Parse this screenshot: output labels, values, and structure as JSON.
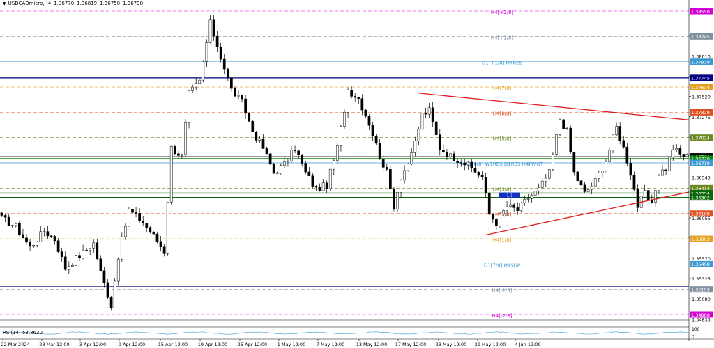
{
  "header": {
    "arrow": "▼",
    "symbol": "USDCADmicro,H4",
    "open": "1.36770",
    "high": "1.36819",
    "low": "1.36750",
    "close": "1.36798"
  },
  "rsi_label": "RSI(14) 53.8630",
  "rsi_scale": {
    "top": "100",
    "bottom": "0"
  },
  "chart_data": {
    "type": "candlestick",
    "symbol": "USDCADmicro",
    "timeframe": "H4",
    "ylim": [
      1.3475,
      1.3875
    ],
    "x_labels": [
      "22 Mar 2024",
      "28 Mar 12:00",
      "3 Apr 12:00",
      "9 Apr 12:00",
      "15 Apr 12:00",
      "19 Apr 12:00",
      "25 Apr 12:00",
      "1 May 12:00",
      "7 May 12:00",
      "13 May 12:00",
      "17 May 12:00",
      "23 May 12:00",
      "29 May 12:00",
      "4 Jun 12:00"
    ],
    "y_ticks": [
      "1.38250",
      "1.38010",
      "1.37765",
      "1.37520",
      "1.37275",
      "1.37030",
      "1.36790",
      "1.36545",
      "1.36300",
      "1.36055",
      "1.35815",
      "1.35570",
      "1.35325",
      "1.35080",
      "1.34835"
    ],
    "close_trend": [
      {
        "x": 0,
        "y": 1.3605
      },
      {
        "x": 4,
        "y": 1.3595
      },
      {
        "x": 8,
        "y": 1.357
      },
      {
        "x": 12,
        "y": 1.359
      },
      {
        "x": 15,
        "y": 1.358
      },
      {
        "x": 18,
        "y": 1.3545
      },
      {
        "x": 22,
        "y": 1.356
      },
      {
        "x": 26,
        "y": 1.3575
      },
      {
        "x": 28,
        "y": 1.354
      },
      {
        "x": 31,
        "y": 1.35
      },
      {
        "x": 33,
        "y": 1.356
      },
      {
        "x": 36,
        "y": 1.3615
      },
      {
        "x": 40,
        "y": 1.36
      },
      {
        "x": 44,
        "y": 1.3578
      },
      {
        "x": 46,
        "y": 1.3565
      },
      {
        "x": 48,
        "y": 1.369
      },
      {
        "x": 51,
        "y": 1.368
      },
      {
        "x": 53,
        "y": 1.3755
      },
      {
        "x": 56,
        "y": 1.377
      },
      {
        "x": 59,
        "y": 1.384
      },
      {
        "x": 62,
        "y": 1.38
      },
      {
        "x": 65,
        "y": 1.376
      },
      {
        "x": 68,
        "y": 1.3745
      },
      {
        "x": 71,
        "y": 1.371
      },
      {
        "x": 74,
        "y": 1.369
      },
      {
        "x": 77,
        "y": 1.366
      },
      {
        "x": 80,
        "y": 1.367
      },
      {
        "x": 83,
        "y": 1.369
      },
      {
        "x": 86,
        "y": 1.366
      },
      {
        "x": 89,
        "y": 1.364
      },
      {
        "x": 92,
        "y": 1.3645
      },
      {
        "x": 95,
        "y": 1.369
      },
      {
        "x": 98,
        "y": 1.376
      },
      {
        "x": 101,
        "y": 1.375
      },
      {
        "x": 104,
        "y": 1.372
      },
      {
        "x": 107,
        "y": 1.368
      },
      {
        "x": 109,
        "y": 1.366
      },
      {
        "x": 111,
        "y": 1.362
      },
      {
        "x": 113,
        "y": 1.3655
      },
      {
        "x": 116,
        "y": 1.368
      },
      {
        "x": 119,
        "y": 1.373
      },
      {
        "x": 121,
        "y": 1.3735
      },
      {
        "x": 124,
        "y": 1.369
      },
      {
        "x": 127,
        "y": 1.368
      },
      {
        "x": 130,
        "y": 1.3675
      },
      {
        "x": 133,
        "y": 1.3665
      },
      {
        "x": 136,
        "y": 1.3655
      },
      {
        "x": 138,
        "y": 1.361
      },
      {
        "x": 140,
        "y": 1.36
      },
      {
        "x": 143,
        "y": 1.362
      },
      {
        "x": 146,
        "y": 1.3615
      },
      {
        "x": 149,
        "y": 1.363
      },
      {
        "x": 152,
        "y": 1.364
      },
      {
        "x": 155,
        "y": 1.366
      },
      {
        "x": 158,
        "y": 1.3725
      },
      {
        "x": 160,
        "y": 1.371
      },
      {
        "x": 162,
        "y": 1.366
      },
      {
        "x": 165,
        "y": 1.3635
      },
      {
        "x": 168,
        "y": 1.365
      },
      {
        "x": 171,
        "y": 1.3675
      },
      {
        "x": 174,
        "y": 1.3715
      },
      {
        "x": 176,
        "y": 1.369
      },
      {
        "x": 178,
        "y": 1.366
      },
      {
        "x": 180,
        "y": 1.362
      },
      {
        "x": 182,
        "y": 1.3635
      },
      {
        "x": 184,
        "y": 1.362
      },
      {
        "x": 186,
        "y": 1.366
      },
      {
        "x": 188,
        "y": 1.3665
      },
      {
        "x": 190,
        "y": 1.369
      },
      {
        "x": 192,
        "y": 1.3682
      },
      {
        "x": 194,
        "y": 1.368
      }
    ]
  },
  "levels": [
    {
      "label": "H4[+2/8]",
      "price": 1.3855,
      "tag": "1.38550",
      "color": "#d400d4",
      "dash": true,
      "width": 0.6
    },
    {
      "label": "H4[+1/8]",
      "price": 1.38245,
      "tag": "1.38245",
      "color": "#8090a0",
      "dash": true,
      "width": 0.6
    },
    {
      "label": "D1[+1/8] H4RES",
      "price": 1.37939,
      "tag": "1.37939",
      "color": "#3b9ad4",
      "dash": false,
      "width": 0.6
    },
    {
      "label": "",
      "price": 1.37745,
      "tag": "1.37745",
      "color": "#000080",
      "dash": false,
      "width": 1.3
    },
    {
      "label": "H4[7/8]",
      "price": 1.37634,
      "tag": "1.37634",
      "color": "#e6a020",
      "dash": true,
      "width": 0.6
    },
    {
      "label": "H4[6/8]",
      "price": 1.37329,
      "tag": "1.37329",
      "color": "#e05020",
      "dash": true,
      "width": 0.6
    },
    {
      "label": "H4[5/8]",
      "price": 1.37024,
      "tag": "1.37024",
      "color": "#6a8a20",
      "dash": true,
      "width": 0.6
    },
    {
      "label": "",
      "price": 1.36798,
      "tag": "1.36798",
      "color": "#000000",
      "dash": false,
      "width": 0.4
    },
    {
      "label": "",
      "price": 1.3677,
      "tag": "1.36770",
      "color": "#0a8a0a",
      "dash": false,
      "width": 1.3
    },
    {
      "label": "MN1[6/8] W1RES D1RES H4PIVOT",
      "price": 1.36719,
      "tag": "1.36719",
      "color": "#3b9ad4",
      "dash": false,
      "width": 0.8
    },
    {
      "label": "H4[3/8]",
      "price": 1.36414,
      "tag": "1.36414",
      "color": "#6a8a20",
      "dash": true,
      "width": 0.6
    },
    {
      "label": "",
      "price": 1.36354,
      "tag": "1.36354",
      "color": "#0a6a0a",
      "dash": false,
      "width": 1.3
    },
    {
      "label": "",
      "price": 1.36302,
      "tag": "1.36302",
      "color": "#0a6a0a",
      "dash": false,
      "width": 1.3
    },
    {
      "label": "H4[2/8]",
      "price": 1.36108,
      "tag": "1.36108",
      "color": "#e05020",
      "dash": true,
      "width": 0.6
    },
    {
      "label": "H4[1/8]",
      "price": 1.35803,
      "tag": "1.35803",
      "color": "#e6a020",
      "dash": true,
      "width": 0.6
    },
    {
      "label": "D1[7/8] H4SUP",
      "price": 1.35498,
      "tag": "1.35498",
      "color": "#3b9ad4",
      "dash": false,
      "width": 0.6
    },
    {
      "label": "",
      "price": 1.35224,
      "tag": "",
      "color": "#000080",
      "dash": false,
      "width": 1.3
    },
    {
      "label": "H4[-1/8]",
      "price": 1.35193,
      "tag": "1.35193",
      "color": "#8090a0",
      "dash": true,
      "width": 0.6
    },
    {
      "label": "H4[-2/8]",
      "price": 1.34888,
      "tag": "1.34888",
      "color": "#d400d4",
      "dash": true,
      "width": 0.6
    }
  ],
  "trendlines": [
    {
      "name": "upper-trendline",
      "color": "#dd1c1c",
      "from": {
        "x": 118,
        "y": 1.3756
      },
      "to": {
        "x": 246,
        "y": 1.3702
      }
    },
    {
      "name": "lower-trendline",
      "color": "#dd1c1c",
      "from": {
        "x": 137,
        "y": 1.3585
      },
      "to": {
        "x": 246,
        "y": 1.3683
      }
    }
  ],
  "marker": {
    "text": "1.1"
  },
  "rsi_data": {
    "level_top": 70,
    "level_bottom": 30,
    "current": 53.863
  }
}
